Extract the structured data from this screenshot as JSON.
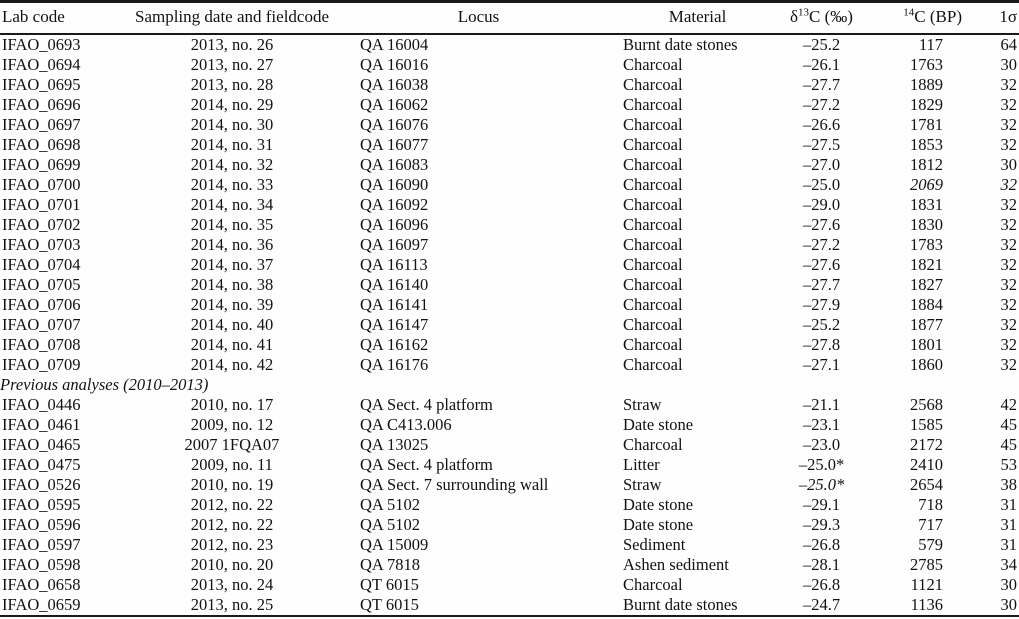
{
  "table": {
    "columns": [
      {
        "label": "Lab code"
      },
      {
        "label": "Sampling date and fieldcode"
      },
      {
        "label": "Locus"
      },
      {
        "label": "Material"
      },
      {
        "pre": "δ",
        "sup": "13",
        "post": "C (‰)"
      },
      {
        "sup": "14",
        "post": "C (BP)"
      },
      {
        "label": "1σ"
      }
    ],
    "sections": [
      {
        "rows": [
          {
            "lab": "IFAO_0693",
            "date": "2013, no. 26",
            "locus": "QA 16004",
            "material": "Burnt date stones",
            "d13c": "–25.2",
            "c14": "117",
            "sigma": "64"
          },
          {
            "lab": "IFAO_0694",
            "date": "2013, no. 27",
            "locus": "QA 16016",
            "material": "Charcoal",
            "d13c": "–26.1",
            "c14": "1763",
            "sigma": "30"
          },
          {
            "lab": "IFAO_0695",
            "date": "2013, no. 28",
            "locus": "QA 16038",
            "material": "Charcoal",
            "d13c": "–27.7",
            "c14": "1889",
            "sigma": "32"
          },
          {
            "lab": "IFAO_0696",
            "date": "2014, no. 29",
            "locus": "QA 16062",
            "material": "Charcoal",
            "d13c": "–27.2",
            "c14": "1829",
            "sigma": "32"
          },
          {
            "lab": "IFAO_0697",
            "date": "2014, no. 30",
            "locus": "QA 16076",
            "material": "Charcoal",
            "d13c": "–26.6",
            "c14": "1781",
            "sigma": "32"
          },
          {
            "lab": "IFAO_0698",
            "date": "2014, no. 31",
            "locus": "QA 16077",
            "material": "Charcoal",
            "d13c": "–27.5",
            "c14": "1853",
            "sigma": "32"
          },
          {
            "lab": "IFAO_0699",
            "date": "2014, no. 32",
            "locus": "QA 16083",
            "material": "Charcoal",
            "d13c": "–27.0",
            "c14": "1812",
            "sigma": "30"
          },
          {
            "lab": "IFAO_0700",
            "date": "2014, no. 33",
            "locus": "QA 16090",
            "material": "Charcoal",
            "d13c": "–25.0",
            "c14": "2069",
            "sigma": "32",
            "italic": [
              "c14",
              "sigma"
            ]
          },
          {
            "lab": "IFAO_0701",
            "date": "2014, no. 34",
            "locus": "QA 16092",
            "material": "Charcoal",
            "d13c": "–29.0",
            "c14": "1831",
            "sigma": "32"
          },
          {
            "lab": "IFAO_0702",
            "date": "2014, no. 35",
            "locus": "QA 16096",
            "material": "Charcoal",
            "d13c": "–27.6",
            "c14": "1830",
            "sigma": "32"
          },
          {
            "lab": "IFAO_0703",
            "date": "2014, no. 36",
            "locus": "QA 16097",
            "material": "Charcoal",
            "d13c": "–27.2",
            "c14": "1783",
            "sigma": "32"
          },
          {
            "lab": "IFAO_0704",
            "date": "2014, no. 37",
            "locus": "QA 16113",
            "material": "Charcoal",
            "d13c": "–27.6",
            "c14": "1821",
            "sigma": "32"
          },
          {
            "lab": "IFAO_0705",
            "date": "2014, no. 38",
            "locus": "QA 16140",
            "material": "Charcoal",
            "d13c": "–27.7",
            "c14": "1827",
            "sigma": "32"
          },
          {
            "lab": "IFAO_0706",
            "date": "2014, no. 39",
            "locus": "QA 16141",
            "material": "Charcoal",
            "d13c": "–27.9",
            "c14": "1884",
            "sigma": "32"
          },
          {
            "lab": "IFAO_0707",
            "date": "2014, no. 40",
            "locus": "QA 16147",
            "material": "Charcoal",
            "d13c": "–25.2",
            "c14": "1877",
            "sigma": "32"
          },
          {
            "lab": "IFAO_0708",
            "date": "2014, no. 41",
            "locus": "QA 16162",
            "material": "Charcoal",
            "d13c": "–27.8",
            "c14": "1801",
            "sigma": "32"
          },
          {
            "lab": "IFAO_0709",
            "date": "2014, no. 42",
            "locus": "QA 16176",
            "material": "Charcoal",
            "d13c": "–27.1",
            "c14": "1860",
            "sigma": "32"
          }
        ]
      },
      {
        "title": "Previous analyses (2010–2013)",
        "rows": [
          {
            "lab": "IFAO_0446",
            "date": "2010, no. 17",
            "locus": "QA Sect. 4 platform",
            "material": "Straw",
            "d13c": "–21.1",
            "c14": "2568",
            "sigma": "42"
          },
          {
            "lab": "IFAO_0461",
            "date": "2009, no. 12",
            "locus": "QA C413.006",
            "material": "Date stone",
            "d13c": "–23.1",
            "c14": "1585",
            "sigma": "45"
          },
          {
            "lab": "IFAO_0465",
            "date": "2007 1FQA07",
            "locus": "QA 13025",
            "material": "Charcoal",
            "d13c": "–23.0",
            "c14": "2172",
            "sigma": "45"
          },
          {
            "lab": "IFAO_0475",
            "date": "2009, no. 11",
            "locus": "QA Sect. 4 platform",
            "material": "Litter",
            "d13c": "–25.0*",
            "c14": "2410",
            "sigma": "53"
          },
          {
            "lab": "IFAO_0526",
            "date": "2010, no. 19",
            "locus": "QA Sect. 7 surrounding wall",
            "material": "Straw",
            "d13c": "–25.0*",
            "c14": "2654",
            "sigma": "38",
            "italic": [
              "d13c"
            ]
          },
          {
            "lab": "IFAO_0595",
            "date": "2012, no. 22",
            "locus": "QA 5102",
            "material": "Date stone",
            "d13c": "–29.1",
            "c14": "718",
            "sigma": "31"
          },
          {
            "lab": "IFAO_0596",
            "date": "2012, no. 22",
            "locus": "QA 5102",
            "material": "Date stone",
            "d13c": "–29.3",
            "c14": "717",
            "sigma": "31"
          },
          {
            "lab": "IFAO_0597",
            "date": "2012, no. 23",
            "locus": "QA 15009",
            "material": "Sediment",
            "d13c": "–26.8",
            "c14": "579",
            "sigma": "31"
          },
          {
            "lab": "IFAO_0598",
            "date": "2010, no. 20",
            "locus": "QA 7818",
            "material": "Ashen sediment",
            "d13c": "–28.1",
            "c14": "2785",
            "sigma": "34"
          },
          {
            "lab": "IFAO_0658",
            "date": "2013, no. 24",
            "locus": "QT 6015",
            "material": "Charcoal",
            "d13c": "–26.8",
            "c14": "1121",
            "sigma": "30"
          },
          {
            "lab": "IFAO_0659",
            "date": "2013, no. 25",
            "locus": "QT 6015",
            "material": "Burnt date stones",
            "d13c": "–24.7",
            "c14": "1136",
            "sigma": "30"
          }
        ]
      }
    ]
  },
  "colors": {
    "text": "#121212",
    "rule": "#1a1a1a",
    "background": "#fefefe"
  }
}
